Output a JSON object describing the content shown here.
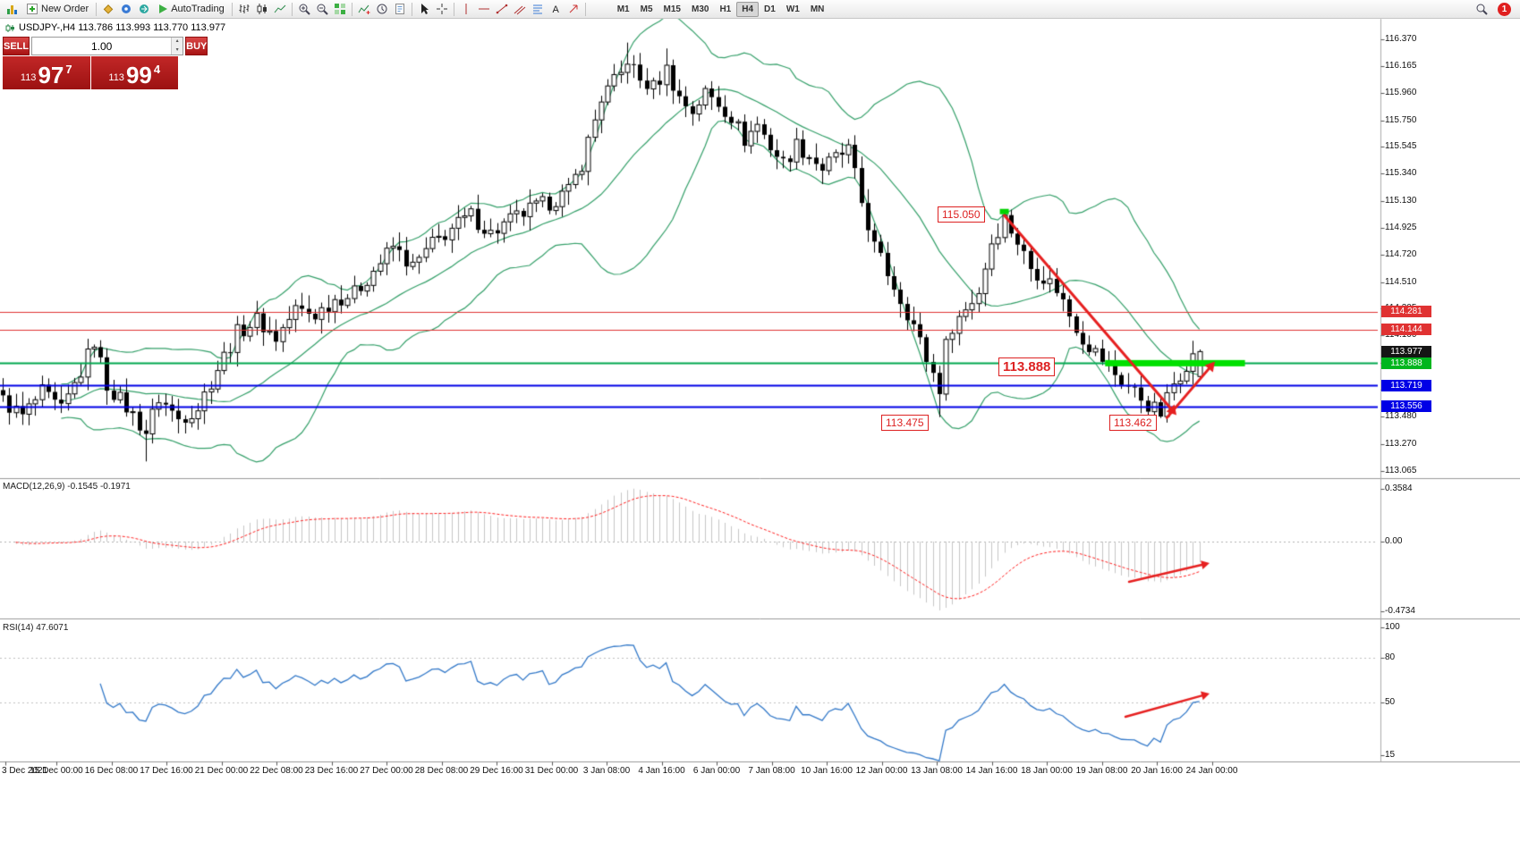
{
  "window": {
    "badge_count": "1"
  },
  "toolbar": {
    "new_order_label": "New Order",
    "autotrading_label": "AutoTrading",
    "timeframes": [
      "M1",
      "M5",
      "M15",
      "M30",
      "H1",
      "H4",
      "D1",
      "W1",
      "MN"
    ],
    "active_timeframe": "H4"
  },
  "symbol_bar": {
    "text": "USDJPY-,H4  113.786 113.993 113.770 113.977"
  },
  "trade_panel": {
    "sell_label": "SELL",
    "buy_label": "BUY",
    "volume": "1.00",
    "sell_price": {
      "big": "113",
      "pips": "97",
      "sup": "7"
    },
    "buy_price": {
      "big": "113",
      "pips": "99",
      "sup": "4"
    }
  },
  "main_chart": {
    "price_scale_labels": [
      "116.370",
      "116.165",
      "115.960",
      "115.750",
      "115.545",
      "115.340",
      "115.130",
      "114.925",
      "114.720",
      "114.510",
      "114.305",
      "114.100",
      "113.890",
      "113.685",
      "113.480",
      "113.270",
      "113.065"
    ],
    "price_tags": [
      {
        "value": "114.281",
        "color": "#e03232"
      },
      {
        "value": "114.144",
        "color": "#e03232"
      },
      {
        "value": "113.977",
        "color": "#151515"
      },
      {
        "value": "113.888",
        "color": "#00b61e"
      },
      {
        "value": "113.719",
        "color": "#0000e6"
      },
      {
        "value": "113.556",
        "color": "#0000e6"
      }
    ],
    "hlines": [
      {
        "price": 114.281,
        "color": "#e03232",
        "width": 1
      },
      {
        "price": 114.144,
        "color": "#e03232",
        "width": 1
      },
      {
        "price": 113.888,
        "color": "#00a84e",
        "width": 2
      },
      {
        "price": 113.719,
        "color": "#0000e6",
        "width": 2
      },
      {
        "price": 113.556,
        "color": "#0000e6",
        "width": 2
      }
    ],
    "support_zone": {
      "price": 113.888,
      "x1_candle": 169.5,
      "x2_candle": 191,
      "color": "#00e000"
    }
  },
  "annotations": {
    "peak": "115.050",
    "level": "113.888",
    "low1": "113.475",
    "low2": "113.462"
  },
  "macd_panel": {
    "label": "MACD(12,26,9) -0.1545 -0.1971",
    "scale_labels": [
      "0.3584",
      "0.00",
      "-0.4734"
    ]
  },
  "rsi_panel": {
    "label": "RSI(14) 47.6071",
    "scale_labels": [
      "100",
      "80",
      "50",
      "15"
    ]
  },
  "time_axis": {
    "labels": [
      "3 Dec 2021",
      "15 Dec 00:00",
      "16 Dec 08:00",
      "17 Dec 16:00",
      "21 Dec 00:00",
      "22 Dec 08:00",
      "23 Dec 16:00",
      "27 Dec 00:00",
      "28 Dec 08:00",
      "29 Dec 16:00",
      "31 Dec 00:00",
      "3 Jan 08:00",
      "4 Jan 16:00",
      "6 Jan 00:00",
      "7 Jan 08:00",
      "10 Jan 16:00",
      "12 Jan 00:00",
      "13 Jan 08:00",
      "14 Jan 16:00",
      "18 Jan 00:00",
      "19 Jan 08:00",
      "20 Jan 16:00",
      "24 Jan 00:00"
    ]
  },
  "chart_data": {
    "type": "candlestick",
    "symbol": "USDJPY-",
    "timeframe": "H4",
    "last_candle_ohlc": {
      "open": 113.786,
      "high": 113.993,
      "low": 113.77,
      "close": 113.977
    },
    "bid": "113.977",
    "ask": "113.994",
    "candle_count": 185,
    "price_axis_range": [
      113.065,
      116.37
    ],
    "indicators": {
      "bollinger": {
        "period": 20,
        "deviation": 2
      },
      "macd": {
        "fast": 12,
        "slow": 26,
        "signal": 9,
        "value": -0.1545,
        "signal_value": -0.1971,
        "scale": [
          -0.4734,
          0.3584
        ]
      },
      "rsi": {
        "period": 14,
        "value": 47.6071,
        "scale": [
          15,
          100
        ],
        "levels": [
          80,
          50
        ]
      }
    },
    "horizontal_levels": [
      114.281,
      114.144,
      113.888,
      113.719,
      113.556
    ],
    "trend_annotations": {
      "down_move": {
        "from_price": 115.05,
        "to_price": 113.462
      },
      "up_move_target": 113.888
    },
    "peak_marker": {
      "i": 154,
      "price": 115.05
    },
    "price_path_anchors": [
      [
        0,
        113.6
      ],
      [
        3,
        113.48
      ],
      [
        6,
        113.66
      ],
      [
        9,
        113.52
      ],
      [
        12,
        113.82
      ],
      [
        14,
        114.06
      ],
      [
        16,
        113.72
      ],
      [
        19,
        113.55
      ],
      [
        22,
        113.36
      ],
      [
        24,
        113.62
      ],
      [
        27,
        113.46
      ],
      [
        30,
        113.55
      ],
      [
        33,
        113.85
      ],
      [
        36,
        114.12
      ],
      [
        39,
        114.22
      ],
      [
        42,
        114.08
      ],
      [
        45,
        114.3
      ],
      [
        48,
        114.26
      ],
      [
        51,
        114.38
      ],
      [
        54,
        114.42
      ],
      [
        57,
        114.6
      ],
      [
        60,
        114.78
      ],
      [
        63,
        114.62
      ],
      [
        66,
        114.8
      ],
      [
        69,
        114.92
      ],
      [
        72,
        115.02
      ],
      [
        75,
        114.88
      ],
      [
        78,
        114.98
      ],
      [
        81,
        115.06
      ],
      [
        84,
        115.12
      ],
      [
        87,
        115.2
      ],
      [
        89,
        115.42
      ],
      [
        92,
        115.92
      ],
      [
        95,
        116.1
      ],
      [
        96,
        116.22
      ],
      [
        98,
        116.05
      ],
      [
        100,
        116.0
      ],
      [
        102,
        116.14
      ],
      [
        104,
        115.92
      ],
      [
        106,
        115.82
      ],
      [
        108,
        115.96
      ],
      [
        110,
        115.88
      ],
      [
        112,
        115.78
      ],
      [
        114,
        115.6
      ],
      [
        116,
        115.72
      ],
      [
        118,
        115.55
      ],
      [
        120,
        115.42
      ],
      [
        122,
        115.56
      ],
      [
        124,
        115.48
      ],
      [
        126,
        115.38
      ],
      [
        128,
        115.46
      ],
      [
        130,
        115.52
      ],
      [
        132,
        115.12
      ],
      [
        134,
        114.78
      ],
      [
        136,
        114.58
      ],
      [
        138,
        114.38
      ],
      [
        140,
        114.18
      ],
      [
        142,
        113.92
      ],
      [
        144,
        113.7
      ],
      [
        145,
        114.02
      ],
      [
        146,
        114.18
      ],
      [
        148,
        114.3
      ],
      [
        150,
        114.44
      ],
      [
        152,
        114.82
      ],
      [
        154,
        115.0
      ],
      [
        156,
        114.82
      ],
      [
        158,
        114.62
      ],
      [
        160,
        114.55
      ],
      [
        162,
        114.46
      ],
      [
        164,
        114.26
      ],
      [
        166,
        114.08
      ],
      [
        168,
        113.97
      ],
      [
        170,
        113.86
      ],
      [
        172,
        113.75
      ],
      [
        174,
        113.67
      ],
      [
        176,
        113.57
      ],
      [
        178,
        113.5
      ],
      [
        180,
        113.73
      ],
      [
        182,
        113.89
      ],
      [
        184,
        113.977
      ]
    ],
    "special_candles": [
      {
        "i": 22,
        "low": 113.135
      },
      {
        "i": 96,
        "high": 116.345
      },
      {
        "i": 102,
        "high": 116.3
      },
      {
        "i": 144,
        "low": 113.475
      },
      {
        "i": 154,
        "high": 115.055
      },
      {
        "i": 177,
        "low": 113.462
      },
      {
        "i": 178,
        "low": 113.468
      },
      {
        "i": 184,
        "open": 113.786,
        "high": 113.993,
        "low": 113.77,
        "close": 113.977
      }
    ]
  }
}
